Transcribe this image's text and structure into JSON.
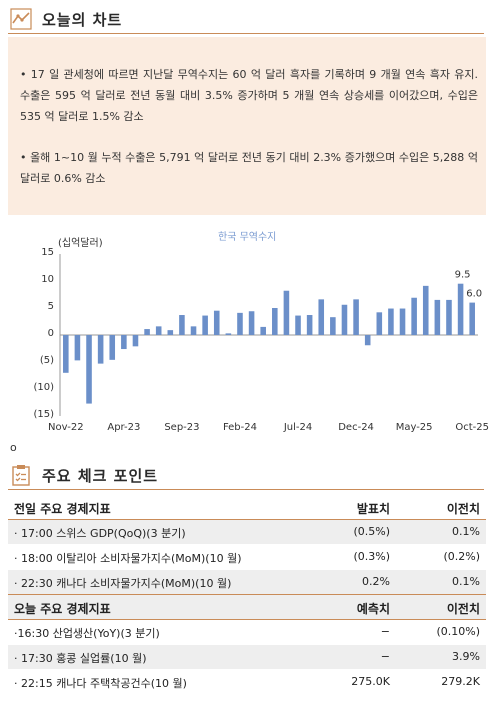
{
  "sections": {
    "chart_title": "오늘의 차트",
    "check_title": "주요 체크 포인트"
  },
  "summary": {
    "bullets": [
      "17 일 관세청에 따르면 지난달 무역수지는 60 억 달러 흑자를 기록하며 9 개월 연속 흑자 유지. 수출은 595 억 달러로 전년 동월 대비 3.5% 증가하며 5 개월 연속 상승세를 이어갔으며, 수입은 535 억 달러로 1.5% 감소",
      "올해 1~10 월 누적 수출은 5,791 억 달러로 전년 동기 대비 2.3% 증가했으며 수입은 5,288 억 달러로 0.6% 감소"
    ]
  },
  "chart_data": {
    "type": "bar",
    "title": "한국 무역수지",
    "ylabel": "(십억달러)",
    "ylim": [
      -15,
      15
    ],
    "yticks": [
      "15",
      "10",
      "5",
      "0",
      "(5)",
      "(10)",
      "(15)"
    ],
    "xtick_labels": [
      "Nov-22",
      "Apr-23",
      "Sep-23",
      "Feb-24",
      "Jul-24",
      "Dec-24",
      "May-25",
      "Oct-25"
    ],
    "categories": [
      "Nov-22",
      "Dec-22",
      "Jan-23",
      "Feb-23",
      "Mar-23",
      "Apr-23",
      "May-23",
      "Jun-23",
      "Jul-23",
      "Aug-23",
      "Sep-23",
      "Oct-23",
      "Nov-23",
      "Dec-23",
      "Jan-24",
      "Feb-24",
      "Mar-24",
      "Apr-24",
      "May-24",
      "Jun-24",
      "Jul-24",
      "Aug-24",
      "Sep-24",
      "Oct-24",
      "Nov-24",
      "Dec-24",
      "Jan-25",
      "Feb-25",
      "Mar-25",
      "Apr-25",
      "May-25",
      "Jun-25",
      "Jul-25",
      "Aug-25",
      "Sep-25",
      "Oct-25"
    ],
    "values": [
      -7.0,
      -4.7,
      -12.7,
      -5.3,
      -4.6,
      -2.6,
      -2.1,
      1.1,
      1.6,
      0.9,
      3.7,
      1.6,
      3.6,
      4.5,
      0.3,
      4.1,
      4.4,
      1.5,
      5.0,
      8.2,
      3.6,
      3.7,
      6.6,
      3.3,
      5.6,
      6.6,
      -1.9,
      4.2,
      4.9,
      4.9,
      6.9,
      9.1,
      6.5,
      6.5,
      9.5,
      6.0
    ],
    "value_labels": [
      {
        "index": 34,
        "text": "9.5"
      },
      {
        "index": 35,
        "text": "6.0"
      }
    ],
    "bar_color": "#6b8fc9",
    "title_color": "#7a9bd1"
  },
  "stray_mark": "o",
  "table": {
    "yesterday": {
      "header": [
        "전일 주요 경제지표",
        "발표치",
        "이전치"
      ],
      "rows": [
        [
          "· 17:00 스위스 GDP(QoQ)(3 분기)",
          "(0.5%)",
          "0.1%"
        ],
        [
          "· 18:00 이탈리아 소비자물가지수(MoM)(10 월)",
          "(0.3%)",
          "(0.2%)"
        ],
        [
          "· 22:30 캐나다 소비자물가지수(MoM)(10 월)",
          "0.2%",
          "0.1%"
        ]
      ]
    },
    "today": {
      "header": [
        "오늘 주요 경제지표",
        "예측치",
        "이전치"
      ],
      "rows": [
        [
          "·16:30 산업생산(YoY)(3 분기)",
          "−",
          "(0.10%)"
        ],
        [
          "· 17:30 홍콩 실업률(10 월)",
          "−",
          "3.9%"
        ],
        [
          "· 22:15 캐나다 주택착공건수(10 월)",
          "275.0K",
          "279.2K"
        ]
      ]
    }
  },
  "colors": {
    "accent": "#c98b58",
    "summary_bg": "#fbece0",
    "row_bg": "#eeeeee"
  }
}
